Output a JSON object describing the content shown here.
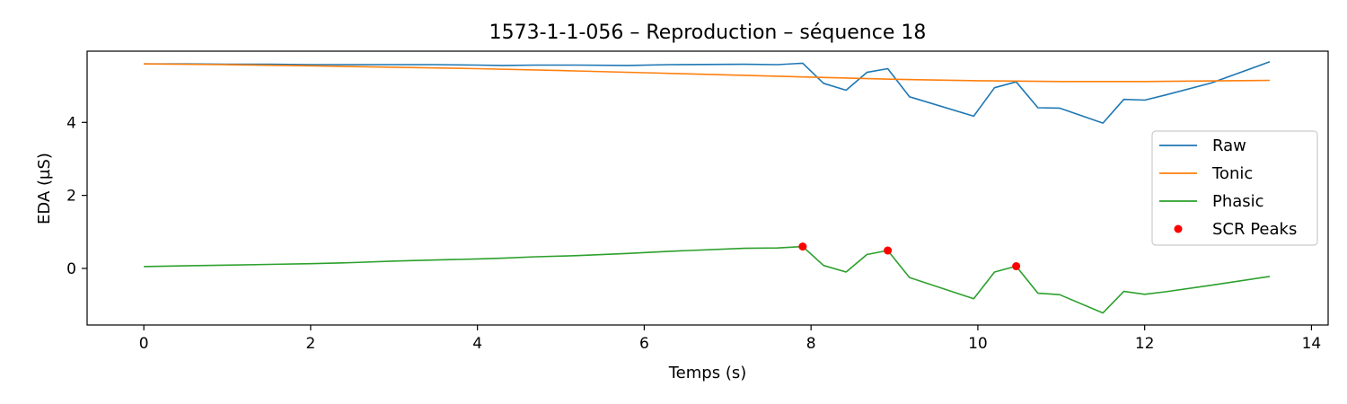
{
  "chart_data": {
    "type": "line",
    "title": "1573-1-1-056 – Reproduction – séquence 18",
    "xlabel": "Temps (s)",
    "ylabel": "EDA (µS)",
    "xlim": [
      -0.68,
      14.2
    ],
    "ylim": [
      -1.55,
      5.95
    ],
    "xticks": [
      0,
      2,
      4,
      6,
      8,
      10,
      12,
      14
    ],
    "yticks": [
      0,
      2,
      4
    ],
    "grid": false,
    "legend_position": "center-right",
    "series": [
      {
        "name": "Raw",
        "color": "#1f77b4",
        "x": [
          0,
          0.5,
          1.0,
          1.5,
          2.0,
          2.5,
          3.0,
          3.5,
          4.0,
          4.3,
          4.7,
          5.2,
          5.8,
          6.3,
          7.2,
          7.6,
          7.9,
          8.15,
          8.42,
          8.67,
          8.92,
          9.18,
          9.95,
          10.2,
          10.46,
          10.72,
          10.98,
          11.5,
          11.75,
          12.0,
          12.25,
          12.8,
          13.5
        ],
        "y": [
          5.6,
          5.6,
          5.59,
          5.59,
          5.58,
          5.58,
          5.58,
          5.58,
          5.57,
          5.56,
          5.57,
          5.57,
          5.56,
          5.58,
          5.59,
          5.58,
          5.62,
          5.07,
          4.88,
          5.37,
          5.47,
          4.7,
          4.17,
          4.95,
          5.11,
          4.4,
          4.39,
          3.98,
          4.63,
          4.61,
          4.75,
          5.08,
          5.66
        ]
      },
      {
        "name": "Tonic",
        "color": "#ff7f0e",
        "x": [
          0,
          1.0,
          2.0,
          3.0,
          4.0,
          5.0,
          6.0,
          7.0,
          8.0,
          9.0,
          10.0,
          11.0,
          12.0,
          13.0,
          13.5
        ],
        "y": [
          5.6,
          5.58,
          5.55,
          5.51,
          5.47,
          5.42,
          5.36,
          5.3,
          5.24,
          5.18,
          5.14,
          5.12,
          5.12,
          5.14,
          5.15
        ]
      },
      {
        "name": "Phasic",
        "color": "#2ca02c",
        "x": [
          0,
          0.5,
          1.0,
          1.5,
          2.0,
          2.5,
          3.0,
          3.5,
          4.0,
          4.3,
          4.7,
          5.2,
          5.8,
          6.3,
          7.2,
          7.6,
          7.9,
          8.15,
          8.42,
          8.67,
          8.92,
          9.18,
          9.95,
          10.2,
          10.46,
          10.72,
          10.98,
          11.5,
          11.75,
          12.0,
          12.25,
          12.8,
          13.5
        ],
        "y": [
          0.05,
          0.07,
          0.09,
          0.11,
          0.13,
          0.16,
          0.2,
          0.23,
          0.26,
          0.28,
          0.32,
          0.35,
          0.41,
          0.47,
          0.55,
          0.56,
          0.6,
          0.08,
          -0.1,
          0.38,
          0.49,
          -0.25,
          -0.83,
          -0.1,
          0.06,
          -0.68,
          -0.72,
          -1.22,
          -0.63,
          -0.71,
          -0.64,
          -0.46,
          -0.22
        ]
      }
    ],
    "scatter": {
      "name": "SCR Peaks",
      "color": "#ff0000",
      "x": [
        7.9,
        8.92,
        10.46
      ],
      "y": [
        0.6,
        0.49,
        0.06
      ]
    }
  }
}
